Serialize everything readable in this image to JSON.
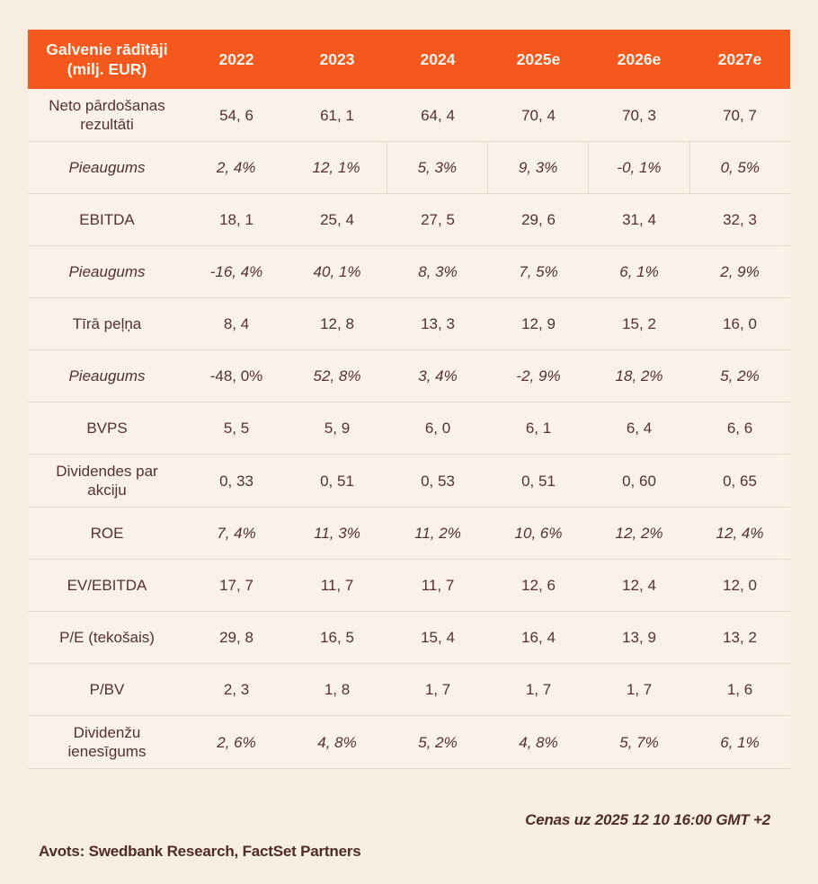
{
  "table": {
    "header": {
      "label": "Galvenie rādītāji\n(milj. EUR)",
      "columns": [
        "2022",
        "2023",
        "2024",
        "2025e",
        "2026e",
        "2027e"
      ]
    },
    "rows": [
      {
        "label": "Neto pārdošanas rezultāti",
        "values": [
          "54, 6",
          "61, 1",
          "64, 4",
          "70, 4",
          "70, 3",
          "70, 7"
        ],
        "italic": false
      },
      {
        "label": "Pieaugums",
        "values": [
          "2, 4%",
          "12, 1%",
          "5, 3%",
          "9, 3%",
          "-0, 1%",
          "0, 5%"
        ],
        "italic": true,
        "bordered_cells": [
          2,
          3,
          4,
          5
        ]
      },
      {
        "label": "EBITDA",
        "values": [
          "18, 1",
          "25, 4",
          "27, 5",
          "29, 6",
          "31, 4",
          "32, 3"
        ],
        "italic": false
      },
      {
        "label": "Pieaugums",
        "values": [
          "-16, 4%",
          "40, 1%",
          "8, 3%",
          "7, 5%",
          "6, 1%",
          "2, 9%"
        ],
        "italic": true
      },
      {
        "label": "Tīrā peļņa",
        "values": [
          "8, 4",
          "12, 8",
          "13, 3",
          "12, 9",
          "15, 2",
          "16, 0"
        ],
        "italic": false
      },
      {
        "label": "Pieaugums",
        "values": [
          "-48, 0%",
          "52, 8%",
          "3, 4%",
          "-2, 9%",
          "18, 2%",
          "5, 2%"
        ],
        "italic": true,
        "upright_cells": [
          0
        ]
      },
      {
        "label": "BVPS",
        "values": [
          "5, 5",
          "5, 9",
          "6, 0",
          "6, 1",
          "6, 4",
          "6, 6"
        ],
        "italic": false
      },
      {
        "label": "Dividendes par akciju",
        "values": [
          "0, 33",
          "0, 51",
          "0, 53",
          "0, 51",
          "0, 60",
          "0, 65"
        ],
        "italic": false
      },
      {
        "label": "ROE",
        "values": [
          "7, 4%",
          "11, 3%",
          "11, 2%",
          "10, 6%",
          "12, 2%",
          "12, 4%"
        ],
        "italic": true,
        "label_italic": false
      },
      {
        "label": "EV/EBITDA",
        "values": [
          "17, 7",
          "11, 7",
          "11, 7",
          "12, 6",
          "12, 4",
          "12, 0"
        ],
        "italic": false
      },
      {
        "label": "P/E (tekošais)",
        "values": [
          "29, 8",
          "16, 5",
          "15, 4",
          "16, 4",
          "13, 9",
          "13, 2"
        ],
        "italic": false
      },
      {
        "label": "P/BV",
        "values": [
          "2, 3",
          "1, 8",
          "1, 7",
          "1, 7",
          "1, 7",
          "1, 6"
        ],
        "italic": false
      },
      {
        "label": "Dividenžu ienesīgums",
        "values": [
          "2, 6%",
          "4, 8%",
          "5, 2%",
          "4, 8%",
          "5, 7%",
          "6, 1%"
        ],
        "italic": true,
        "label_italic": false
      }
    ]
  },
  "footer": {
    "prices_note": "Cenas uz 2025 12 10 16:00 GMT +2",
    "source": "Avots: Swedbank Research, FactSet Partners"
  },
  "colors": {
    "header_bg": "#F5581C",
    "header_text": "#FDF6EE",
    "row_bg": "#FAF2E8",
    "page_bg": "#F8EDE1",
    "text": "#53322F",
    "separator": "#E7D8C9"
  }
}
